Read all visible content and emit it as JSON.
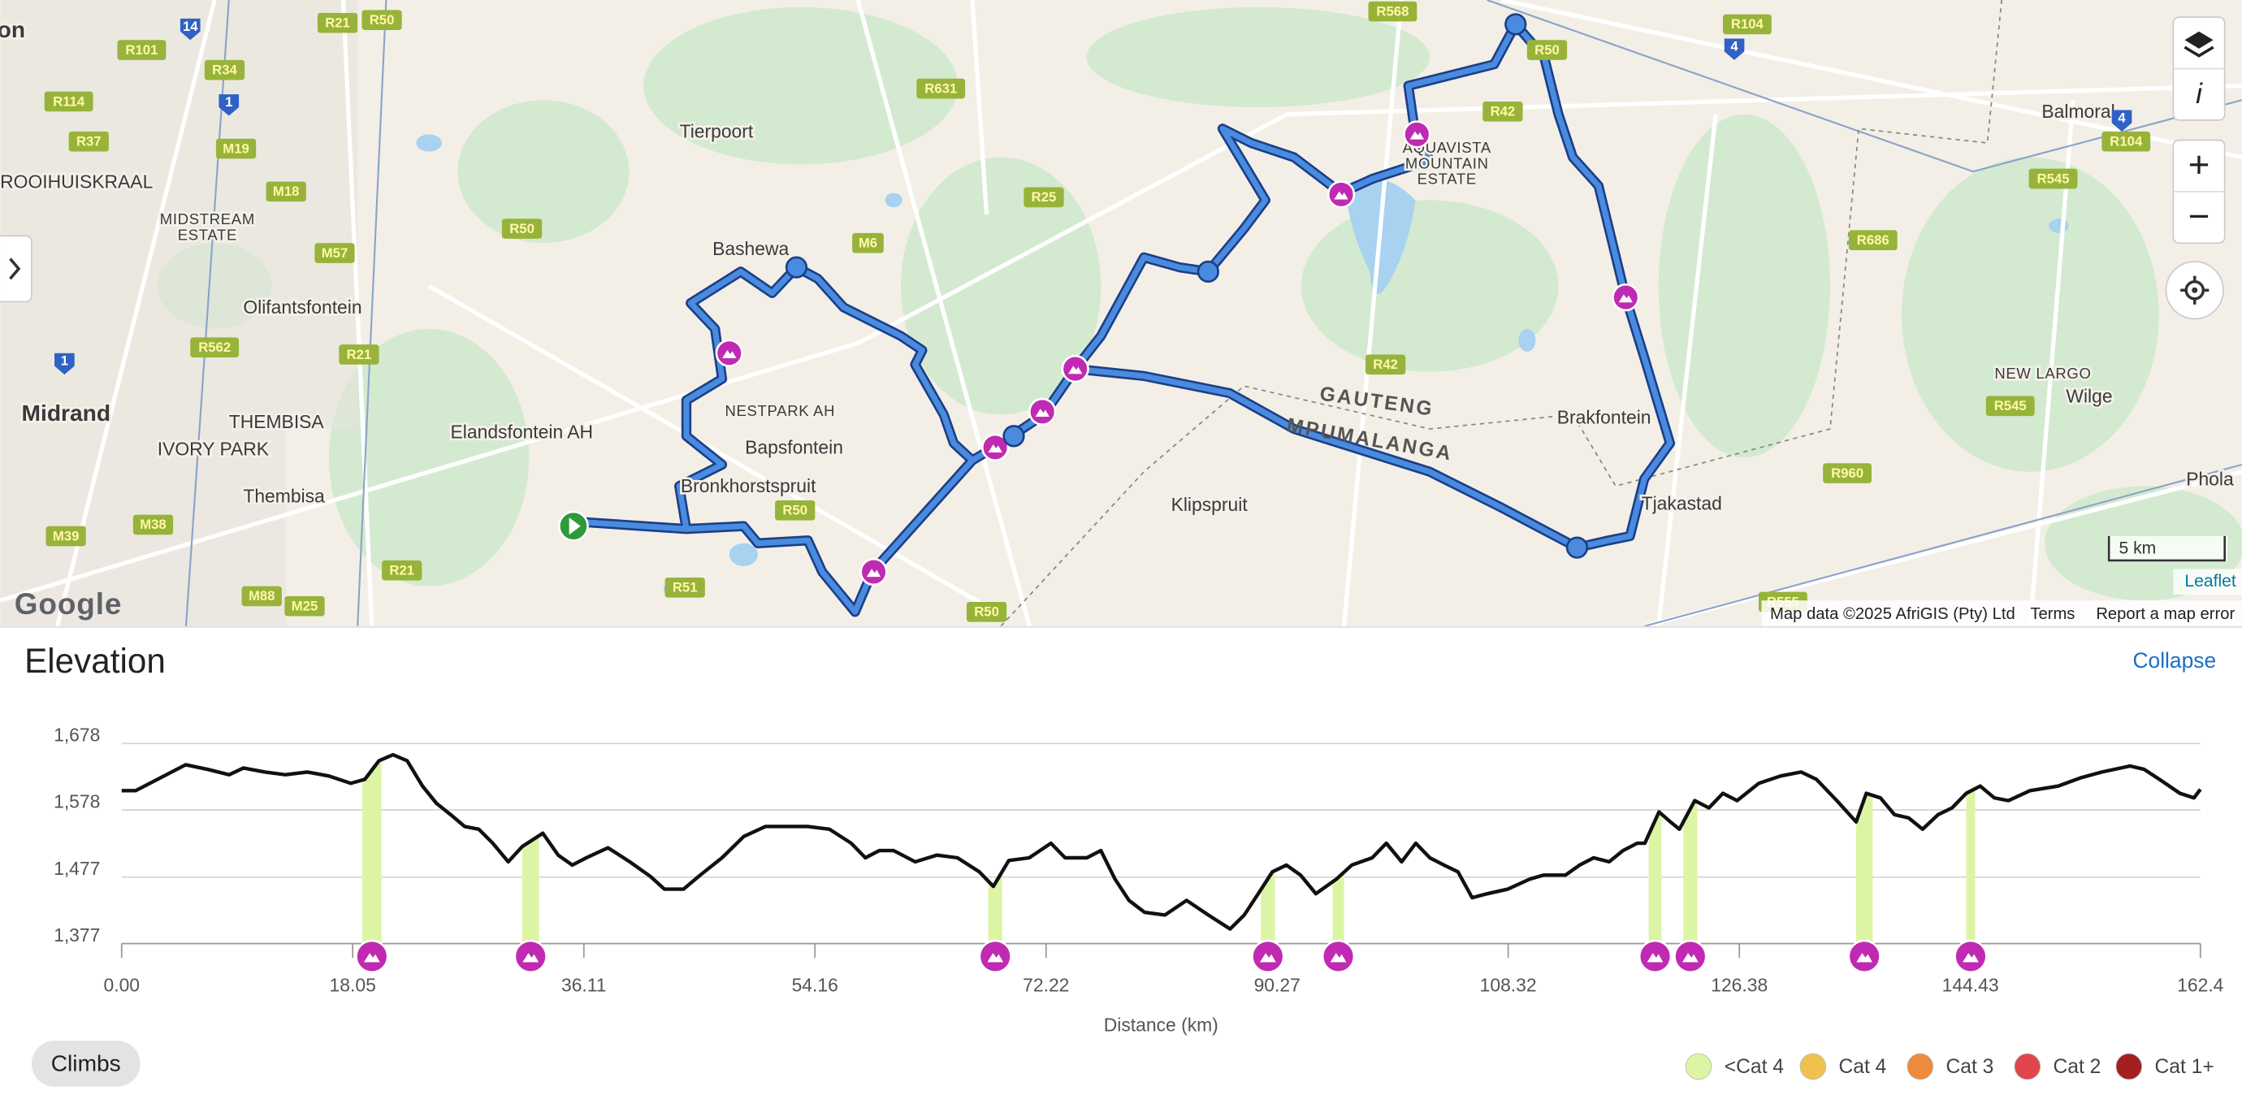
{
  "map": {
    "places": [
      "Centurion",
      "Tierpoort",
      "Bashewa",
      "ROOIHUISKRAAL",
      "MIDSTREAM",
      "ESTATE",
      "Olifantsfontein",
      "Midrand",
      "THEMBISA",
      "IVORY PARK",
      "Thembisa",
      "Elandsfontein AH",
      "NESTPARK AH",
      "Bapsfontein",
      "Bronkhorstspruit",
      "Klipspruit",
      "GAUTENG",
      "MPUMALANGA",
      "AQUAVISTA",
      "MOUNTAIN",
      "ESTATE",
      "Brakfontein",
      "Tjakastad",
      "Balmoral",
      "NEW LARGO",
      "Wilge",
      "Phola"
    ],
    "shields": [
      "R21",
      "R50",
      "14",
      "R101",
      "R34",
      "1",
      "R114",
      "R37",
      "M19",
      "M18",
      "M57",
      "R50",
      "R562",
      "R21",
      "1",
      "M39",
      "M38",
      "M88",
      "M25",
      "R21",
      "R51",
      "R50",
      "R50",
      "M6",
      "R631",
      "R25",
      "R568",
      "R104",
      "R50",
      "4",
      "R42",
      "R42",
      "R545",
      "R686",
      "R545",
      "R960",
      "R555",
      "4",
      "R104"
    ],
    "attribution": "Map data ©2025 AfriGIS (Pty) Ltd",
    "terms": "Terms",
    "report": "Report a map error",
    "scale": "5 km",
    "leaflet": "Leaflet",
    "google": "Google",
    "zoom_in": "+",
    "zoom_out": "−",
    "info": "i"
  },
  "panel": {
    "title": "Elevation",
    "collapse": "Collapse",
    "climbs_button": "Climbs"
  },
  "chart_data": {
    "type": "line",
    "x_label": "Distance (km)",
    "color": "#111111",
    "xlim": [
      0,
      162.4
    ],
    "xticks": [
      {
        "value": 0,
        "label": "0.00"
      },
      18.05,
      36.11,
      54.16,
      72.22,
      90.27,
      108.32,
      126.38,
      144.43,
      162.4
    ],
    "ylim": [
      1377,
      1678
    ],
    "yticks": [
      {
        "value": 1377,
        "label": "1,377"
      },
      {
        "value": 1477,
        "label": "1,477"
      },
      {
        "value": 1578,
        "label": "1,578"
      },
      {
        "value": 1678,
        "label": "1,678"
      }
    ],
    "grid": true,
    "x": [
      0.0,
      1.1,
      2.2,
      3.9,
      5.0,
      6.7,
      8.4,
      9.5,
      11.2,
      12.8,
      14.5,
      16.2,
      17.9,
      19.0,
      20.1,
      21.2,
      22.3,
      23.5,
      24.6,
      25.7,
      26.8,
      27.9,
      29.0,
      30.2,
      31.3,
      32.9,
      34.1,
      35.2,
      36.3,
      38.0,
      39.7,
      41.3,
      42.4,
      43.9,
      45.2,
      46.9,
      48.6,
      50.3,
      51.9,
      53.6,
      55.3,
      57.0,
      58.1,
      59.2,
      60.3,
      62.0,
      63.7,
      65.3,
      67.0,
      68.1,
      69.3,
      70.9,
      72.6,
      73.7,
      75.4,
      76.5,
      77.6,
      78.7,
      79.9,
      81.5,
      83.2,
      84.9,
      86.6,
      87.7,
      88.8,
      89.9,
      91.0,
      92.1,
      93.3,
      94.9,
      96.1,
      97.7,
      98.8,
      100.0,
      101.1,
      102.2,
      103.3,
      104.4,
      105.5,
      106.7,
      108.3,
      110.0,
      111.1,
      112.8,
      113.9,
      115.0,
      116.2,
      117.3,
      118.4,
      119.0,
      120.1,
      121.0,
      121.7,
      122.9,
      124.0,
      125.1,
      126.2,
      127.9,
      129.6,
      131.2,
      132.4,
      134.0,
      135.5,
      136.3,
      137.4,
      138.5,
      139.6,
      140.7,
      141.9,
      143.0,
      144.1,
      145.2,
      146.3,
      147.4,
      149.1,
      151.3,
      153.0,
      154.7,
      156.9,
      158.0,
      159.2,
      160.8,
      161.9,
      162.4
    ],
    "values": [
      1607,
      1607,
      1618,
      1635,
      1646,
      1639,
      1631,
      1641,
      1635,
      1631,
      1635,
      1629,
      1618,
      1624,
      1652,
      1661,
      1652,
      1614,
      1588,
      1571,
      1553,
      1549,
      1528,
      1500,
      1523,
      1543,
      1510,
      1495,
      1506,
      1521,
      1500,
      1478,
      1459,
      1459,
      1480,
      1506,
      1538,
      1553,
      1553,
      1553,
      1549,
      1528,
      1506,
      1517,
      1517,
      1500,
      1510,
      1506,
      1485,
      1463,
      1502,
      1506,
      1528,
      1506,
      1506,
      1517,
      1474,
      1442,
      1424,
      1420,
      1442,
      1420,
      1399,
      1420,
      1452,
      1485,
      1495,
      1480,
      1452,
      1474,
      1495,
      1506,
      1528,
      1500,
      1528,
      1506,
      1495,
      1485,
      1446,
      1452,
      1459,
      1474,
      1480,
      1480,
      1495,
      1506,
      1500,
      1517,
      1528,
      1528,
      1575,
      1560,
      1549,
      1592,
      1581,
      1603,
      1592,
      1618,
      1629,
      1635,
      1624,
      1592,
      1560,
      1603,
      1596,
      1571,
      1566,
      1549,
      1571,
      1581,
      1603,
      1614,
      1596,
      1592,
      1607,
      1614,
      1626,
      1635,
      1644,
      1639,
      1624,
      1603,
      1596,
      1609
    ],
    "climbs": [
      {
        "start": 18.8,
        "end": 20.3
      },
      {
        "start": 31.3,
        "end": 32.6
      },
      {
        "start": 67.7,
        "end": 68.8
      },
      {
        "start": 89.0,
        "end": 90.1
      },
      {
        "start": 94.6,
        "end": 95.5
      },
      {
        "start": 119.3,
        "end": 120.3
      },
      {
        "start": 122.0,
        "end": 123.1
      },
      {
        "start": 135.5,
        "end": 136.8
      },
      {
        "start": 144.1,
        "end": 144.8
      }
    ],
    "legend": [
      {
        "name": "<Cat 4",
        "color": "#dcf5a4"
      },
      {
        "name": "Cat 4",
        "color": "#efc24e"
      },
      {
        "name": "Cat 3",
        "color": "#ee8a3c"
      },
      {
        "name": "Cat 2",
        "color": "#e0464b"
      },
      {
        "name": "Cat 1+",
        "color": "#a3201f"
      }
    ]
  }
}
